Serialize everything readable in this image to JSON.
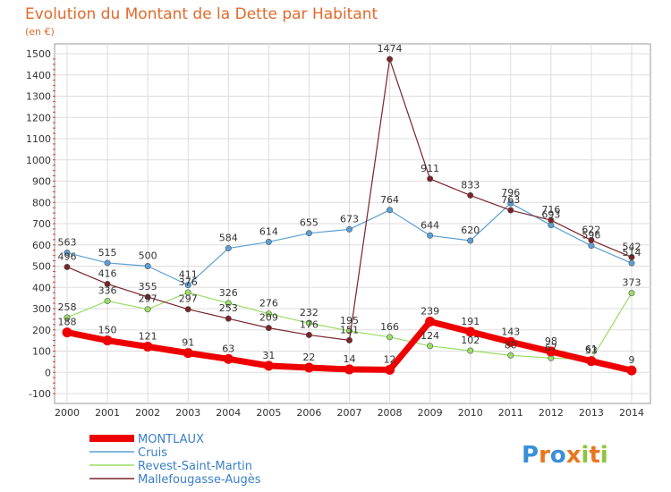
{
  "chart_data": {
    "type": "line",
    "title": "Evolution du Montant de la Dette par Habitant",
    "subtitle": "(en €)",
    "xlabel": "",
    "ylabel": "",
    "x": [
      "2000",
      "2001",
      "2002",
      "2003",
      "2004",
      "2005",
      "2006",
      "2007",
      "2008",
      "2009",
      "2010",
      "2011",
      "2012",
      "2013",
      "2014"
    ],
    "ylim": [
      -100,
      1500
    ],
    "yticks": [
      "-100",
      "0",
      "100",
      "200",
      "300",
      "400",
      "500",
      "600",
      "700",
      "800",
      "900",
      "1000",
      "1100",
      "1200",
      "1300",
      "1400",
      "1500"
    ],
    "grid": true,
    "legend": "bottom-left",
    "series": [
      {
        "name": "MONTLAUX",
        "color": "#ee0000",
        "values": [
          188,
          150,
          121,
          91,
          63,
          31,
          22,
          14,
          12,
          239,
          191,
          143,
          98,
          53,
          9
        ],
        "labels": [
          "188",
          "150",
          "121",
          "91",
          "63",
          "31",
          "22",
          "14",
          "12",
          "239",
          "191",
          "143",
          "98",
          "53",
          "9"
        ]
      },
      {
        "name": "Cruis",
        "color": "#5b9fd4",
        "values": [
          563,
          515,
          500,
          411,
          584,
          614,
          655,
          673,
          764,
          644,
          620,
          796,
          693,
          596,
          514
        ],
        "labels": [
          "563",
          "515",
          "500",
          "411",
          "584",
          "614",
          "655",
          "673",
          "764",
          "644",
          "620",
          "796",
          "693",
          "596",
          "514"
        ]
      },
      {
        "name": "Revest-Saint-Martin",
        "color": "#99dd66",
        "values": [
          258,
          336,
          297,
          376,
          326,
          276,
          232,
          195,
          166,
          124,
          102,
          80,
          67,
          61,
          373
        ],
        "labels": [
          "258",
          "336",
          "297",
          "376",
          "326",
          "276",
          "232",
          "195",
          "166",
          "124",
          "102",
          "80",
          "67",
          "61",
          "373"
        ]
      },
      {
        "name": "Mallefougasse-Augès",
        "color": "#7a2428",
        "values": [
          496,
          416,
          355,
          297,
          253,
          209,
          176,
          151,
          1474,
          911,
          833,
          763,
          716,
          622,
          542
        ],
        "labels": [
          "496",
          "416",
          "355",
          "297",
          "253",
          "209",
          "176",
          "151",
          "1474",
          "911",
          "833",
          "763",
          "716",
          "622",
          "542"
        ]
      }
    ]
  },
  "brand": {
    "letters": [
      "P",
      "r",
      "o",
      "x",
      "i",
      "t",
      "i"
    ],
    "colors": [
      "#3a8fd8",
      "#e8781e",
      "#3a8fd8",
      "#e8781e",
      "#8cc63f",
      "#e8781e",
      "#8cc63f"
    ]
  }
}
